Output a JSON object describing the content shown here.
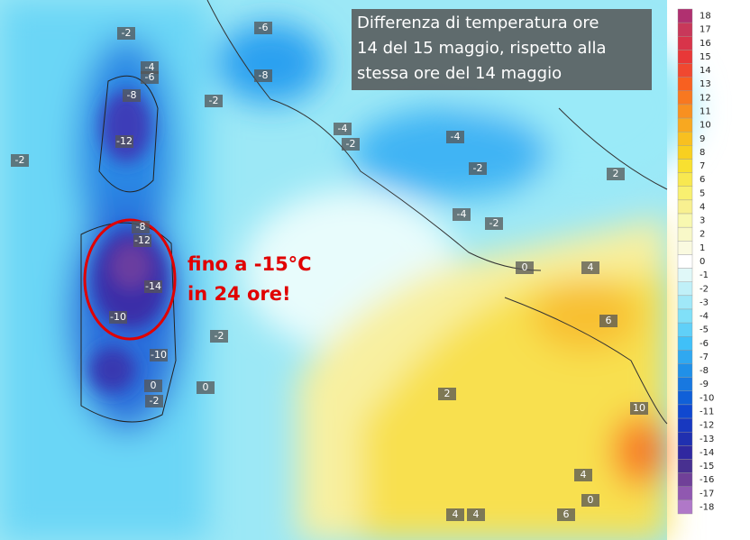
{
  "title": [
    "Differenza di temperatura ore",
    "14 del 15 maggio, rispetto alla",
    "stessa ore del 14 maggio"
  ],
  "annotation": [
    "fino a -15°C",
    "in 24 ore!"
  ],
  "legend": {
    "labels": [
      18,
      17,
      16,
      15,
      14,
      13,
      12,
      11,
      10,
      9,
      8,
      7,
      6,
      5,
      4,
      3,
      2,
      1,
      0,
      -1,
      -2,
      -3,
      -4,
      -5,
      -6,
      -7,
      -8,
      -9,
      -10,
      -11,
      -12,
      -13,
      -14,
      -15,
      -16,
      -17,
      -18
    ],
    "colors": [
      "#b03070",
      "#c8385a",
      "#d8344a",
      "#e83838",
      "#f04830",
      "#f86020",
      "#f87820",
      "#f89020",
      "#f8a820",
      "#f8c020",
      "#f8d020",
      "#f8e030",
      "#f8e850",
      "#f8f070",
      "#f8f090",
      "#f8f8b0",
      "#f8f8c8",
      "#fafae0",
      "#ffffff",
      "#e0f8f8",
      "#c0f0f8",
      "#a0e8f8",
      "#80e0f8",
      "#60d0f8",
      "#40c0f8",
      "#30a8f0",
      "#2090e8",
      "#1878e0",
      "#1060d8",
      "#1048d0",
      "#1838c0",
      "#2030b0",
      "#3028a0",
      "#483090",
      "#704098",
      "#9058b0",
      "#b078c8"
    ]
  },
  "contour_labels": [
    -2,
    -6,
    -4,
    -6,
    -8,
    -2,
    -8,
    -12,
    -2,
    -4,
    -2,
    -4,
    -2,
    2,
    -4,
    -2,
    -8,
    -12,
    -14,
    -10,
    -2,
    0,
    4,
    6,
    -10,
    0,
    0,
    -2,
    2,
    10,
    4,
    4,
    4,
    6,
    0
  ]
}
